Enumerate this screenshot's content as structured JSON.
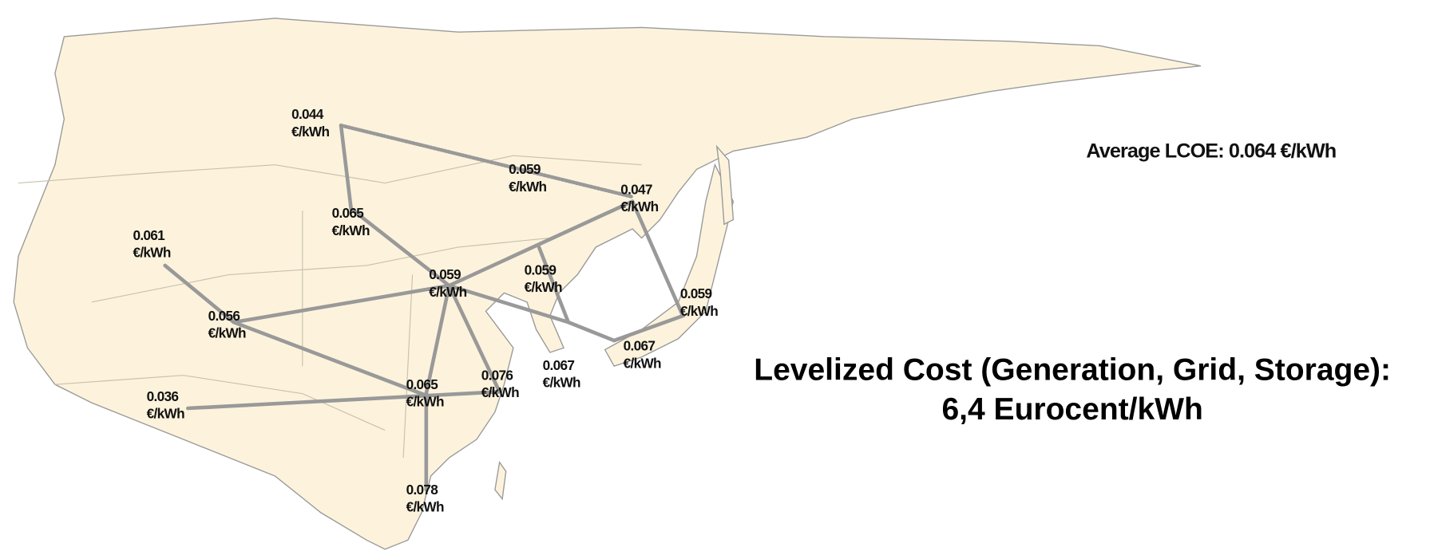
{
  "summary": {
    "average_label": "Average LCOE: 0.064 €/kWh"
  },
  "headline": {
    "line1": "Levelized Cost (Generation, Grid, Storage):",
    "line2": "6,4 Eurocent/kWh"
  },
  "nodes": [
    {
      "value": 0.044,
      "unit": "€/kWh"
    },
    {
      "value": 0.059,
      "unit": "€/kWh"
    },
    {
      "value": 0.047,
      "unit": "€/kWh"
    },
    {
      "value": 0.065,
      "unit": "€/kWh"
    },
    {
      "value": 0.061,
      "unit": "€/kWh"
    },
    {
      "value": 0.059,
      "unit": "€/kWh"
    },
    {
      "value": 0.059,
      "unit": "€/kWh"
    },
    {
      "value": 0.059,
      "unit": "€/kWh"
    },
    {
      "value": 0.056,
      "unit": "€/kWh"
    },
    {
      "value": 0.067,
      "unit": "€/kWh"
    },
    {
      "value": 0.067,
      "unit": "€/kWh"
    },
    {
      "value": 0.065,
      "unit": "€/kWh"
    },
    {
      "value": 0.076,
      "unit": "€/kWh"
    },
    {
      "value": 0.036,
      "unit": "€/kWh"
    },
    {
      "value": 0.078,
      "unit": "€/kWh"
    }
  ]
}
